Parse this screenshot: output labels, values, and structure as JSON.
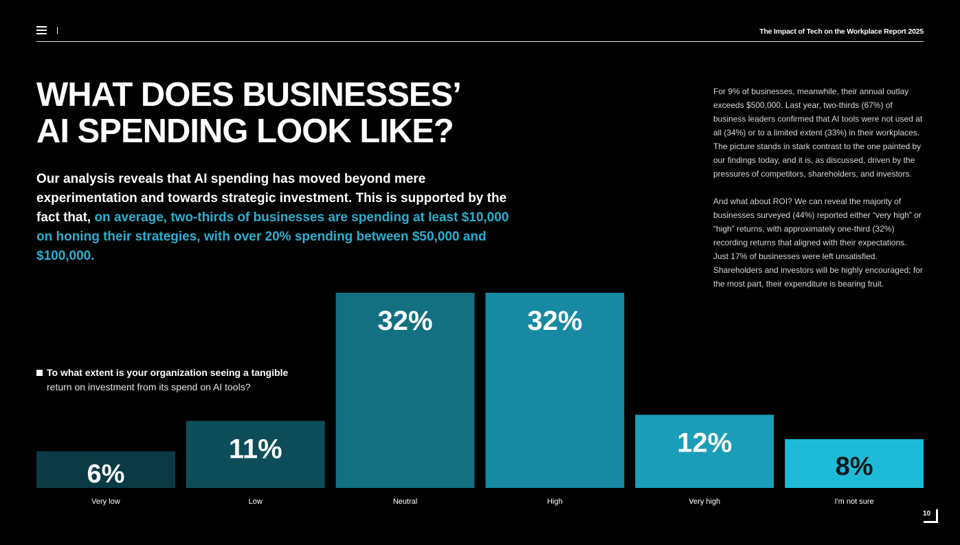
{
  "header": {
    "report_title": "The Impact of Tech on the Workplace Report 2025",
    "menu_icon": "hamburger-menu-icon"
  },
  "title": {
    "line1": "WHAT DOES BUSINESSES’",
    "line2": "AI SPENDING LOOK LIKE?"
  },
  "lead": {
    "plain": "Our analysis reveals that AI spending has moved beyond mere experimentation and towards strategic investment. This is supported by the fact that, ",
    "highlight": "on average, two-thirds of businesses are spending at least $10,000 on honing their strategies, with over 20% spending between $50,000 and $100,000."
  },
  "side_text": {
    "p1": "For 9% of businesses, meanwhile, their annual outlay exceeds $500,000. Last year, two-thirds (67%) of business leaders confirmed that AI tools were not used at all (34%) or to a limited extent (33%) in their workplaces. The picture stands in stark contrast to the one painted by our findings today, and it is, as discussed, driven by the pressures of competitors, shareholders, and investors.",
    "p2": "And what about ROI? We can reveal the majority of businesses surveyed (44%) reported either “very high” or “high” returns, with approximately one-third (32%) recording returns that aligned with their expectations. Just 17% of businesses were left unsatisfied. Shareholders and investors will be highly encouraged; for the most part, their expenditure is bearing fruit."
  },
  "question": {
    "line1": "To what extent is your organization seeing a tangible",
    "line2": "return on investment from its spend on AI tools?"
  },
  "chart_data": {
    "type": "bar",
    "title": "To what extent is your organization seeing a tangible return on investment from its spend on AI tools?",
    "categories": [
      "Very low",
      "Low",
      "Neutral",
      "High",
      "Very high",
      "I'm not sure"
    ],
    "values": [
      6,
      11,
      32,
      32,
      12,
      8
    ],
    "value_labels": [
      "6%",
      "11%",
      "32%",
      "32%",
      "12%",
      "8%"
    ],
    "colors": [
      "#0b3a44",
      "#0d4d5a",
      "#127081",
      "#1889a2",
      "#1a9db9",
      "#1ebbd9"
    ],
    "ylim": [
      0,
      32
    ],
    "grid": false,
    "legend": "none"
  },
  "footer": {
    "page_number": "10"
  }
}
